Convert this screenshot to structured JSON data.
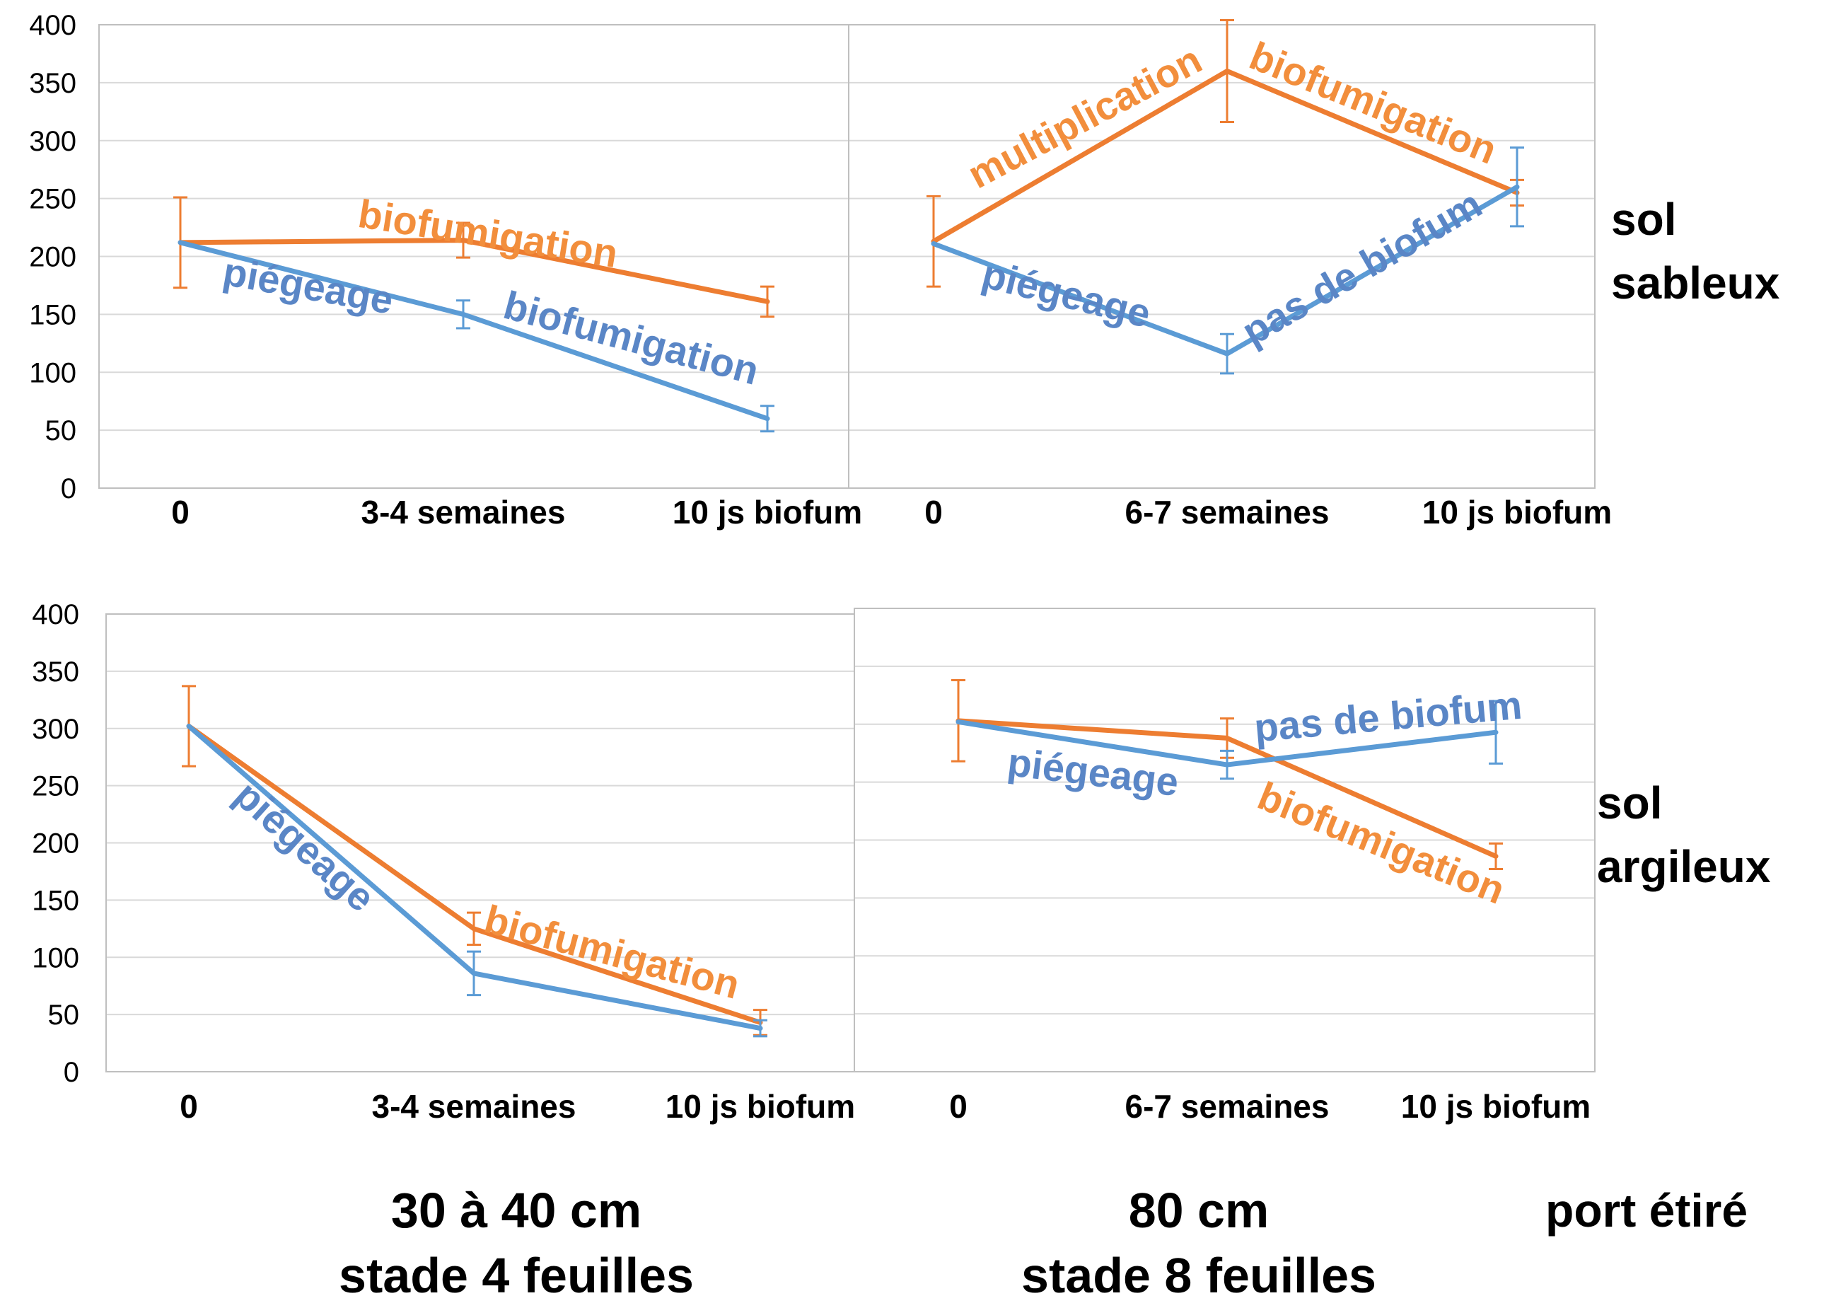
{
  "colors": {
    "orange": "#ED7D31",
    "blue": "#5B9BD5",
    "text_orange": "#F28E3C",
    "text_blue": "#5A86C6",
    "grid": "#D9D9D9",
    "axis_text": "#000000"
  },
  "y_ticks": [
    "400",
    "350",
    "300",
    "250",
    "200",
    "150",
    "100",
    "50",
    "0"
  ],
  "row_labels": {
    "top_line1": "sol",
    "top_line2": "sableux",
    "bottom_line1": "sol",
    "bottom_line2": "argileux"
  },
  "column_labels": {
    "left_line1": "30 à 40 cm",
    "left_line2": "stade 4 feuilles",
    "right_line1": "80 cm",
    "right_line2": "stade 8 feuilles",
    "extra": "port étiré"
  },
  "chart_data": [
    {
      "type": "line",
      "panel": "top-left",
      "categories": [
        "0",
        "3-4 semaines",
        "10 js biofum"
      ],
      "ylim": [
        0,
        400
      ],
      "series": [
        {
          "color": "#ED7D31",
          "values": [
            212,
            214,
            161
          ],
          "errors": [
            39,
            15,
            13
          ]
        },
        {
          "color": "#5B9BD5",
          "values": [
            212,
            150,
            60
          ],
          "errors": [
            0,
            12,
            11
          ]
        }
      ],
      "annotations": [
        {
          "text": "biofumigation",
          "color": "orange",
          "at": [
            1.08,
            217
          ],
          "angle": 9
        },
        {
          "text": "piégeage",
          "color": "blue",
          "at": [
            0.45,
            172
          ],
          "angle": 10
        },
        {
          "text": "biofumigation",
          "color": "blue",
          "at": [
            1.55,
            127
          ],
          "angle": 15
        }
      ]
    },
    {
      "type": "line",
      "panel": "top-right",
      "categories": [
        "0",
        "6-7 semaines",
        "10 js biofum"
      ],
      "ylim": [
        0,
        400
      ],
      "series": [
        {
          "color": "#ED7D31",
          "values": [
            213,
            360,
            255
          ],
          "errors": [
            39,
            44,
            11
          ]
        },
        {
          "color": "#5B9BD5",
          "values": [
            211,
            116,
            260
          ],
          "errors": [
            0,
            17,
            34
          ]
        }
      ],
      "annotations": [
        {
          "text": "multiplication",
          "color": "orange",
          "at": [
            0.52,
            318
          ],
          "angle": -28
        },
        {
          "text": "biofumigation",
          "color": "orange",
          "at": [
            1.5,
            330
          ],
          "angle": 22
        },
        {
          "text": "piégeage",
          "color": "blue",
          "at": [
            0.45,
            165
          ],
          "angle": 14
        },
        {
          "text": "pas de biofum",
          "color": "blue",
          "at": [
            1.47,
            188
          ],
          "angle": -30
        }
      ]
    },
    {
      "type": "line",
      "panel": "bottom-left",
      "categories": [
        "0",
        "3-4 semaines",
        "10 js biofum"
      ],
      "ylim": [
        0,
        400
      ],
      "series": [
        {
          "color": "#ED7D31",
          "values": [
            302,
            125,
            43
          ],
          "errors": [
            35,
            14,
            11
          ]
        },
        {
          "color": "#5B9BD5",
          "values": [
            302,
            86,
            38
          ],
          "errors": [
            0,
            19,
            7
          ]
        }
      ],
      "annotations": [
        {
          "text": "piégeage",
          "color": "blue",
          "at": [
            0.4,
            195
          ],
          "angle": 42
        },
        {
          "text": "biofumigation",
          "color": "orange",
          "at": [
            1.48,
            102
          ],
          "angle": 15
        }
      ]
    },
    {
      "type": "line",
      "panel": "bottom-right",
      "categories": [
        "0",
        "6-7 semaines",
        "10 js biofum"
      ],
      "ylim": [
        0,
        400
      ],
      "series": [
        {
          "color": "#ED7D31",
          "values": [
            303,
            288,
            186
          ],
          "errors": [
            35,
            17,
            11
          ]
        },
        {
          "color": "#5B9BD5",
          "values": [
            302,
            265,
            293
          ],
          "errors": [
            0,
            12,
            27
          ]
        }
      ],
      "annotations": [
        {
          "text": "piégeage",
          "color": "blue",
          "at": [
            0.5,
            256
          ],
          "angle": 7
        },
        {
          "text": "pas de biofum",
          "color": "blue",
          "at": [
            1.6,
            304
          ],
          "angle": -5
        },
        {
          "text": "biofumigation",
          "color": "orange",
          "at": [
            1.57,
            195
          ],
          "angle": 22
        }
      ]
    }
  ]
}
